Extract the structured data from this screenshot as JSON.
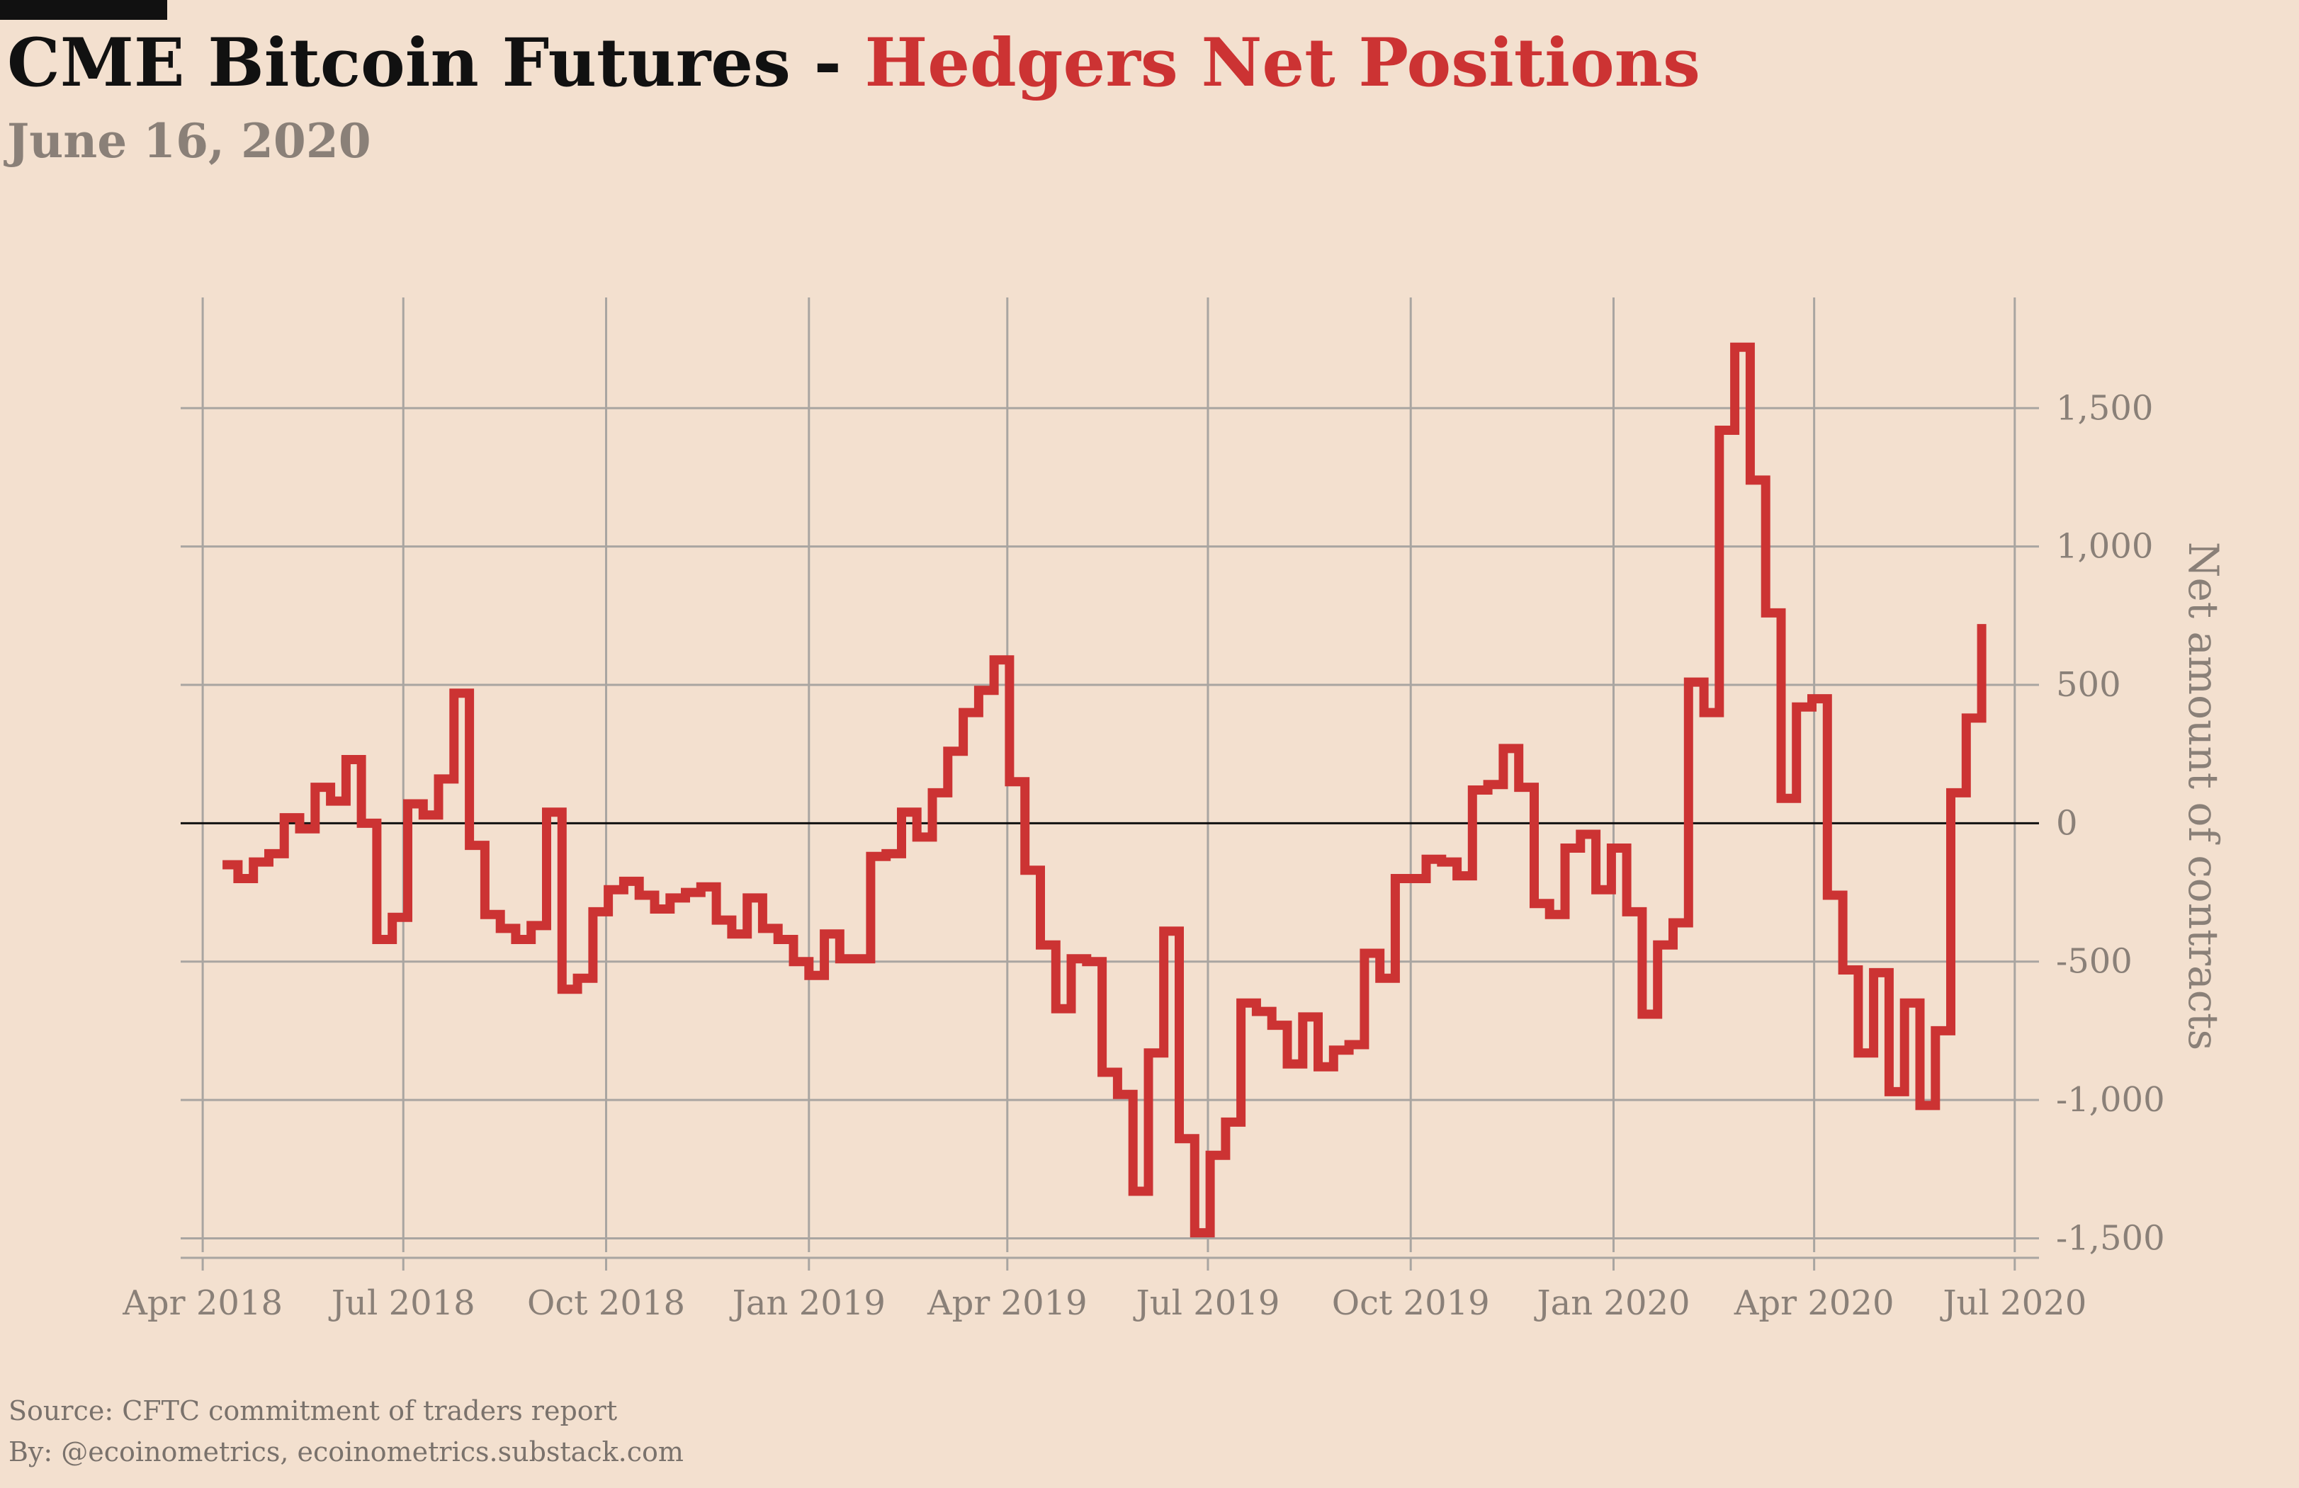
{
  "header": {
    "title_main": "CME Bitcoin Futures - ",
    "title_highlight": "Hedgers Net Positions",
    "subtitle": "June 16, 2020"
  },
  "footer": {
    "source": "Source: CFTC commitment of traders report",
    "byline": "By: @ecoinometrics, ecoinometrics.substack.com"
  },
  "colors": {
    "background": "#f3e0cf",
    "series": "#cc3333",
    "title_text": "#111111",
    "muted_text": "#8a8078",
    "grid": "#a9a5a1",
    "zero_line": "#111111"
  },
  "chart_data": {
    "type": "line",
    "step": true,
    "title": "Hedgers Net Positions",
    "xlabel": "",
    "ylabel": "Net amount of contracts",
    "ylim": [
      -1550,
      1900
    ],
    "y_ticks": [
      -1500,
      -1000,
      -500,
      0,
      500,
      1000,
      1500
    ],
    "y_tick_labels": [
      "-1,500",
      "-1,000",
      "-500",
      "0",
      "500",
      "1,000",
      "1,500"
    ],
    "y_axis_position": "right",
    "x_ticks": [
      "2018-04-01",
      "2018-07-01",
      "2018-10-01",
      "2019-01-01",
      "2019-04-01",
      "2019-07-01",
      "2019-10-01",
      "2020-01-01",
      "2020-04-01",
      "2020-07-01"
    ],
    "x_tick_labels": [
      "Apr 2018",
      "Jul 2018",
      "Oct 2018",
      "Jan 2019",
      "Apr 2019",
      "Jul 2019",
      "Oct 2019",
      "Jan 2020",
      "Apr 2020",
      "Jul 2020"
    ],
    "xlim": [
      "2018-03-22",
      "2020-07-12"
    ],
    "grid": true,
    "zero_line": true,
    "series": [
      {
        "name": "",
        "x": [
          "2018-04-10",
          "2018-04-17",
          "2018-04-24",
          "2018-05-01",
          "2018-05-08",
          "2018-05-15",
          "2018-05-22",
          "2018-05-29",
          "2018-06-05",
          "2018-06-12",
          "2018-06-19",
          "2018-06-26",
          "2018-07-03",
          "2018-07-10",
          "2018-07-17",
          "2018-07-24",
          "2018-07-31",
          "2018-08-07",
          "2018-08-14",
          "2018-08-21",
          "2018-08-28",
          "2018-09-04",
          "2018-09-11",
          "2018-09-18",
          "2018-09-25",
          "2018-10-02",
          "2018-10-09",
          "2018-10-16",
          "2018-10-23",
          "2018-10-30",
          "2018-11-06",
          "2018-11-13",
          "2018-11-20",
          "2018-11-27",
          "2018-12-04",
          "2018-12-11",
          "2018-12-18",
          "2018-12-25",
          "2019-01-01",
          "2019-01-08",
          "2019-01-15",
          "2019-01-22",
          "2019-01-29",
          "2019-02-05",
          "2019-02-12",
          "2019-02-19",
          "2019-02-26",
          "2019-03-05",
          "2019-03-12",
          "2019-03-19",
          "2019-03-26",
          "2019-04-02",
          "2019-04-09",
          "2019-04-16",
          "2019-04-23",
          "2019-04-30",
          "2019-05-07",
          "2019-05-14",
          "2019-05-21",
          "2019-05-28",
          "2019-06-04",
          "2019-06-11",
          "2019-06-18",
          "2019-06-25",
          "2019-07-02",
          "2019-07-09",
          "2019-07-16",
          "2019-07-23",
          "2019-07-30",
          "2019-08-06",
          "2019-08-13",
          "2019-08-20",
          "2019-08-27",
          "2019-09-03",
          "2019-09-10",
          "2019-09-17",
          "2019-09-24",
          "2019-10-01",
          "2019-10-08",
          "2019-10-15",
          "2019-10-22",
          "2019-10-29",
          "2019-11-05",
          "2019-11-12",
          "2019-11-19",
          "2019-11-26",
          "2019-12-03",
          "2019-12-10",
          "2019-12-17",
          "2019-12-24",
          "2019-12-31",
          "2020-01-07",
          "2020-01-14",
          "2020-01-21",
          "2020-01-28",
          "2020-02-04",
          "2020-02-11",
          "2020-02-18",
          "2020-02-25",
          "2020-03-03",
          "2020-03-10",
          "2020-03-17",
          "2020-03-24",
          "2020-03-31",
          "2020-04-07",
          "2020-04-14",
          "2020-04-21",
          "2020-04-28",
          "2020-05-05",
          "2020-05-12",
          "2020-05-19",
          "2020-05-26",
          "2020-06-02",
          "2020-06-09",
          "2020-06-16"
        ],
        "values": [
          -150,
          -200,
          -140,
          -110,
          20,
          -20,
          130,
          80,
          230,
          0,
          -420,
          -340,
          70,
          30,
          160,
          470,
          -80,
          -330,
          -380,
          -420,
          -370,
          40,
          -600,
          -560,
          -320,
          -240,
          -210,
          -260,
          -310,
          -270,
          -250,
          -230,
          -350,
          -400,
          -270,
          -380,
          -420,
          -500,
          -550,
          -400,
          -490,
          -490,
          -120,
          -110,
          40,
          -50,
          110,
          260,
          400,
          480,
          590,
          150,
          -170,
          -440,
          -670,
          -490,
          -500,
          -900,
          -980,
          -1330,
          -830,
          -390,
          -1140,
          -1480,
          -1200,
          -1080,
          -650,
          -680,
          -730,
          -870,
          -700,
          -880,
          -820,
          -800,
          -470,
          -560,
          -200,
          -200,
          -130,
          -140,
          -190,
          120,
          140,
          270,
          130,
          -290,
          -330,
          -90,
          -40,
          -240,
          -90,
          -320,
          -690,
          -440,
          -360,
          510,
          400,
          1420,
          1720,
          1240,
          760,
          90,
          420,
          450,
          -260,
          -530,
          -830,
          -540,
          -970,
          -650,
          -1020,
          -750,
          110,
          380,
          720
        ]
      }
    ]
  }
}
